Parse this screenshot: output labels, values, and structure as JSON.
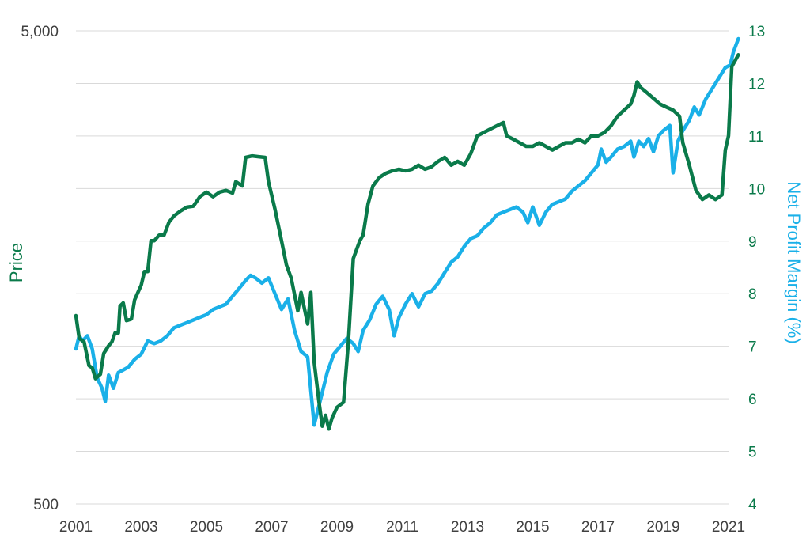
{
  "chart_data": {
    "type": "line",
    "title": "",
    "xlabel": "",
    "ylabel": "Price",
    "y2label": "Net Profit Margin (%)",
    "x_ticks": [
      "2001",
      "2003",
      "2005",
      "2007",
      "2009",
      "2011",
      "2013",
      "2015",
      "2017",
      "2019",
      "2021"
    ],
    "y_ticks_left": [
      "5,000",
      "500"
    ],
    "y_ticks_right": [
      "13",
      "12",
      "11",
      "10",
      "9",
      "8",
      "7",
      "6",
      "5",
      "4"
    ],
    "ylim_left": [
      500,
      5000
    ],
    "ylim_right": [
      4,
      13
    ],
    "y_left_scale": "log",
    "xlim": [
      2001,
      2021
    ],
    "grid": true,
    "colors": {
      "price": "#0a7a4a",
      "margin": "#1ab0e8",
      "grid": "#d9d9d9",
      "tick_text": "#404040"
    },
    "series": [
      {
        "name": "Price",
        "axis": "left",
        "color": "#0a7a4a",
        "points": [
          [
            2001.0,
            1250
          ],
          [
            2001.1,
            1120
          ],
          [
            2001.25,
            1100
          ],
          [
            2001.4,
            980
          ],
          [
            2001.5,
            970
          ],
          [
            2001.6,
            920
          ],
          [
            2001.75,
            940
          ],
          [
            2001.85,
            1040
          ],
          [
            2002.0,
            1080
          ],
          [
            2002.1,
            1100
          ],
          [
            2002.2,
            1150
          ],
          [
            2002.3,
            1150
          ],
          [
            2002.35,
            1310
          ],
          [
            2002.45,
            1330
          ],
          [
            2002.55,
            1220
          ],
          [
            2002.7,
            1230
          ],
          [
            2002.8,
            1350
          ],
          [
            2002.9,
            1400
          ],
          [
            2003.0,
            1450
          ],
          [
            2003.1,
            1550
          ],
          [
            2003.2,
            1550
          ],
          [
            2003.3,
            1800
          ],
          [
            2003.4,
            1800
          ],
          [
            2003.55,
            1850
          ],
          [
            2003.7,
            1850
          ],
          [
            2003.85,
            1970
          ],
          [
            2004.0,
            2030
          ],
          [
            2004.2,
            2080
          ],
          [
            2004.4,
            2120
          ],
          [
            2004.6,
            2130
          ],
          [
            2004.8,
            2230
          ],
          [
            2005.0,
            2280
          ],
          [
            2005.2,
            2230
          ],
          [
            2005.4,
            2280
          ],
          [
            2005.6,
            2300
          ],
          [
            2005.8,
            2270
          ],
          [
            2005.9,
            2400
          ],
          [
            2006.1,
            2350
          ],
          [
            2006.2,
            2700
          ],
          [
            2006.4,
            2720
          ],
          [
            2006.6,
            2710
          ],
          [
            2006.8,
            2700
          ],
          [
            2006.9,
            2400
          ],
          [
            2007.1,
            2100
          ],
          [
            2007.3,
            1800
          ],
          [
            2007.45,
            1600
          ],
          [
            2007.6,
            1500
          ],
          [
            2007.8,
            1280
          ],
          [
            2007.9,
            1400
          ],
          [
            2008.1,
            1200
          ],
          [
            2008.2,
            1400
          ],
          [
            2008.3,
            1000
          ],
          [
            2008.45,
            820
          ],
          [
            2008.55,
            730
          ],
          [
            2008.65,
            770
          ],
          [
            2008.75,
            720
          ],
          [
            2008.85,
            760
          ],
          [
            2009.0,
            800
          ],
          [
            2009.2,
            820
          ],
          [
            2009.35,
            1100
          ],
          [
            2009.5,
            1650
          ],
          [
            2009.7,
            1800
          ],
          [
            2009.8,
            1850
          ],
          [
            2009.95,
            2150
          ],
          [
            2010.1,
            2350
          ],
          [
            2010.3,
            2450
          ],
          [
            2010.5,
            2500
          ],
          [
            2010.7,
            2530
          ],
          [
            2010.9,
            2550
          ],
          [
            2011.1,
            2530
          ],
          [
            2011.3,
            2550
          ],
          [
            2011.5,
            2600
          ],
          [
            2011.7,
            2550
          ],
          [
            2011.9,
            2580
          ],
          [
            2012.1,
            2650
          ],
          [
            2012.3,
            2700
          ],
          [
            2012.5,
            2600
          ],
          [
            2012.7,
            2650
          ],
          [
            2012.9,
            2600
          ],
          [
            2013.1,
            2750
          ],
          [
            2013.3,
            3000
          ],
          [
            2013.5,
            3050
          ],
          [
            2013.7,
            3100
          ],
          [
            2013.9,
            3150
          ],
          [
            2014.1,
            3200
          ],
          [
            2014.2,
            3000
          ],
          [
            2014.4,
            2950
          ],
          [
            2014.6,
            2900
          ],
          [
            2014.8,
            2850
          ],
          [
            2015.0,
            2850
          ],
          [
            2015.2,
            2900
          ],
          [
            2015.4,
            2850
          ],
          [
            2015.6,
            2800
          ],
          [
            2015.8,
            2850
          ],
          [
            2016.0,
            2900
          ],
          [
            2016.2,
            2900
          ],
          [
            2016.4,
            2950
          ],
          [
            2016.6,
            2900
          ],
          [
            2016.8,
            3000
          ],
          [
            2017.0,
            3000
          ],
          [
            2017.2,
            3050
          ],
          [
            2017.4,
            3150
          ],
          [
            2017.6,
            3300
          ],
          [
            2017.8,
            3400
          ],
          [
            2018.0,
            3500
          ],
          [
            2018.1,
            3650
          ],
          [
            2018.2,
            3900
          ],
          [
            2018.3,
            3800
          ],
          [
            2018.5,
            3700
          ],
          [
            2018.7,
            3600
          ],
          [
            2018.9,
            3500
          ],
          [
            2019.1,
            3450
          ],
          [
            2019.3,
            3400
          ],
          [
            2019.5,
            3300
          ],
          [
            2019.6,
            2900
          ],
          [
            2019.8,
            2600
          ],
          [
            2020.0,
            2300
          ],
          [
            2020.2,
            2200
          ],
          [
            2020.4,
            2250
          ],
          [
            2020.6,
            2200
          ],
          [
            2020.8,
            2250
          ],
          [
            2020.9,
            2800
          ],
          [
            2021.0,
            3000
          ],
          [
            2021.1,
            4200
          ],
          [
            2021.3,
            4450
          ]
        ]
      },
      {
        "name": "Net Profit Margin (%)",
        "axis": "right",
        "color": "#1ab0e8",
        "points": [
          [
            2001.0,
            6.95
          ],
          [
            2001.1,
            7.2
          ],
          [
            2001.2,
            7.1
          ],
          [
            2001.35,
            7.2
          ],
          [
            2001.5,
            6.95
          ],
          [
            2001.65,
            6.4
          ],
          [
            2001.8,
            6.2
          ],
          [
            2001.9,
            5.95
          ],
          [
            2002.0,
            6.45
          ],
          [
            2002.15,
            6.2
          ],
          [
            2002.3,
            6.5
          ],
          [
            2002.45,
            6.55
          ],
          [
            2002.6,
            6.6
          ],
          [
            2002.8,
            6.75
          ],
          [
            2003.0,
            6.85
          ],
          [
            2003.2,
            7.1
          ],
          [
            2003.4,
            7.05
          ],
          [
            2003.6,
            7.1
          ],
          [
            2003.8,
            7.2
          ],
          [
            2004.0,
            7.35
          ],
          [
            2004.2,
            7.4
          ],
          [
            2004.4,
            7.45
          ],
          [
            2004.6,
            7.5
          ],
          [
            2004.8,
            7.55
          ],
          [
            2005.0,
            7.6
          ],
          [
            2005.2,
            7.7
          ],
          [
            2005.4,
            7.75
          ],
          [
            2005.6,
            7.8
          ],
          [
            2005.8,
            7.95
          ],
          [
            2006.0,
            8.1
          ],
          [
            2006.2,
            8.25
          ],
          [
            2006.35,
            8.35
          ],
          [
            2006.5,
            8.3
          ],
          [
            2006.7,
            8.2
          ],
          [
            2006.9,
            8.3
          ],
          [
            2007.1,
            8.0
          ],
          [
            2007.3,
            7.7
          ],
          [
            2007.5,
            7.9
          ],
          [
            2007.7,
            7.3
          ],
          [
            2007.9,
            6.9
          ],
          [
            2008.1,
            6.8
          ],
          [
            2008.3,
            5.5
          ],
          [
            2008.5,
            6.0
          ],
          [
            2008.7,
            6.5
          ],
          [
            2008.9,
            6.85
          ],
          [
            2009.1,
            7.0
          ],
          [
            2009.3,
            7.15
          ],
          [
            2009.5,
            7.05
          ],
          [
            2009.65,
            6.9
          ],
          [
            2009.8,
            7.3
          ],
          [
            2010.0,
            7.5
          ],
          [
            2010.2,
            7.8
          ],
          [
            2010.4,
            7.95
          ],
          [
            2010.6,
            7.7
          ],
          [
            2010.75,
            7.2
          ],
          [
            2010.9,
            7.55
          ],
          [
            2011.1,
            7.8
          ],
          [
            2011.3,
            8.0
          ],
          [
            2011.5,
            7.75
          ],
          [
            2011.7,
            8.0
          ],
          [
            2011.9,
            8.05
          ],
          [
            2012.1,
            8.2
          ],
          [
            2012.3,
            8.4
          ],
          [
            2012.5,
            8.6
          ],
          [
            2012.7,
            8.7
          ],
          [
            2012.9,
            8.9
          ],
          [
            2013.1,
            9.05
          ],
          [
            2013.3,
            9.1
          ],
          [
            2013.5,
            9.25
          ],
          [
            2013.7,
            9.35
          ],
          [
            2013.9,
            9.5
          ],
          [
            2014.1,
            9.55
          ],
          [
            2014.3,
            9.6
          ],
          [
            2014.5,
            9.65
          ],
          [
            2014.7,
            9.55
          ],
          [
            2014.85,
            9.35
          ],
          [
            2015.0,
            9.65
          ],
          [
            2015.2,
            9.3
          ],
          [
            2015.4,
            9.55
          ],
          [
            2015.6,
            9.7
          ],
          [
            2015.8,
            9.75
          ],
          [
            2016.0,
            9.8
          ],
          [
            2016.2,
            9.95
          ],
          [
            2016.4,
            10.05
          ],
          [
            2016.6,
            10.15
          ],
          [
            2016.8,
            10.3
          ],
          [
            2017.0,
            10.45
          ],
          [
            2017.1,
            10.75
          ],
          [
            2017.25,
            10.5
          ],
          [
            2017.4,
            10.6
          ],
          [
            2017.6,
            10.75
          ],
          [
            2017.8,
            10.8
          ],
          [
            2018.0,
            10.9
          ],
          [
            2018.1,
            10.6
          ],
          [
            2018.25,
            10.9
          ],
          [
            2018.4,
            10.8
          ],
          [
            2018.55,
            10.95
          ],
          [
            2018.7,
            10.7
          ],
          [
            2018.85,
            11.0
          ],
          [
            2019.0,
            11.1
          ],
          [
            2019.2,
            11.2
          ],
          [
            2019.3,
            10.3
          ],
          [
            2019.45,
            10.9
          ],
          [
            2019.6,
            11.1
          ],
          [
            2019.8,
            11.3
          ],
          [
            2019.95,
            11.55
          ],
          [
            2020.1,
            11.4
          ],
          [
            2020.3,
            11.7
          ],
          [
            2020.5,
            11.9
          ],
          [
            2020.7,
            12.1
          ],
          [
            2020.9,
            12.3
          ],
          [
            2021.05,
            12.35
          ],
          [
            2021.15,
            12.6
          ],
          [
            2021.3,
            12.85
          ]
        ]
      }
    ]
  }
}
